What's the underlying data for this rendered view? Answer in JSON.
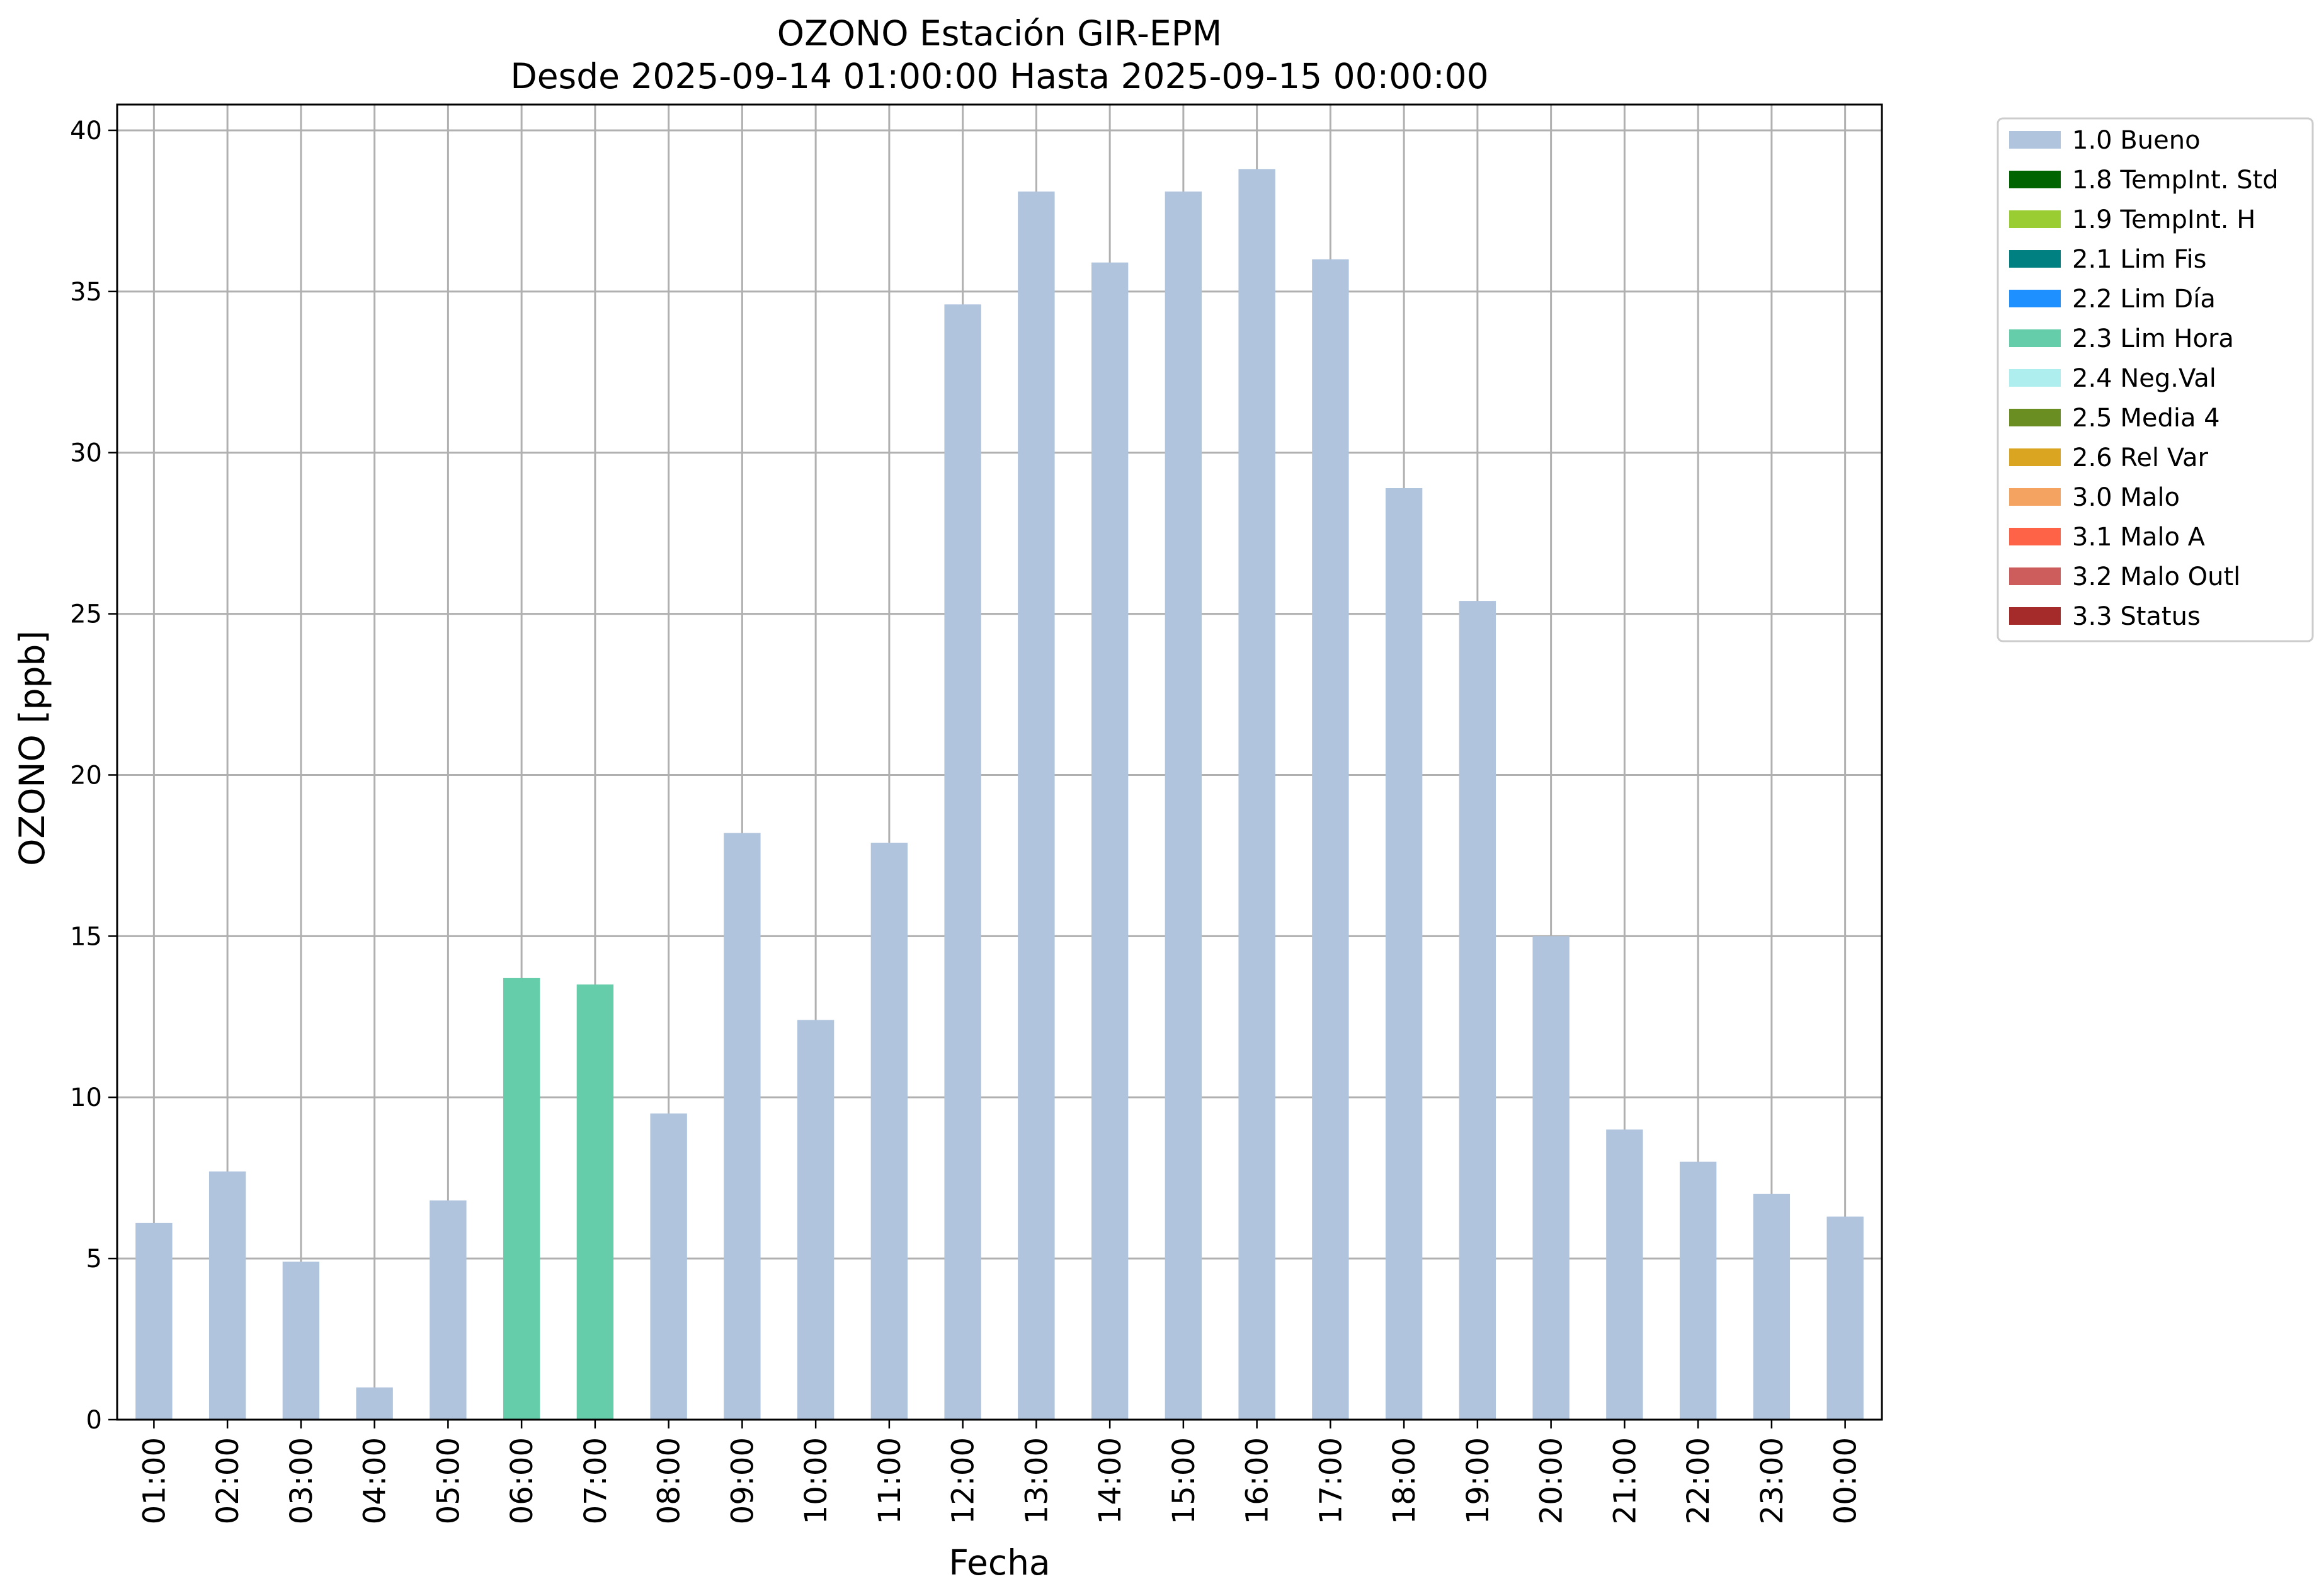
{
  "chart_data": {
    "type": "bar",
    "title": "OZONO Estación GIR-EPM",
    "subtitle": "Desde 2025-09-14 01:00:00 Hasta 2025-09-15 00:00:00",
    "xlabel": "Fecha",
    "ylabel": "OZONO [ppb]",
    "ylim": [
      0,
      40.8
    ],
    "yticks": [
      0,
      5,
      10,
      15,
      20,
      25,
      30,
      35,
      40
    ],
    "grid": true,
    "legend_position": "outside-top-right",
    "categories": [
      "01:00",
      "02:00",
      "03:00",
      "04:00",
      "05:00",
      "06:00",
      "07:00",
      "08:00",
      "09:00",
      "10:00",
      "11:00",
      "12:00",
      "13:00",
      "14:00",
      "15:00",
      "16:00",
      "17:00",
      "18:00",
      "19:00",
      "20:00",
      "21:00",
      "22:00",
      "23:00",
      "00:00"
    ],
    "values": [
      6.1,
      7.7,
      4.9,
      1.0,
      6.8,
      13.7,
      13.5,
      9.5,
      18.2,
      12.4,
      17.9,
      34.6,
      38.1,
      35.9,
      38.1,
      38.8,
      36.0,
      28.9,
      25.4,
      15.0,
      9.0,
      8.0,
      7.0,
      6.3
    ],
    "flags": [
      "1.0 Bueno",
      "1.0 Bueno",
      "1.0 Bueno",
      "1.0 Bueno",
      "1.0 Bueno",
      "2.3 Lim Hora",
      "2.3 Lim Hora",
      "1.0 Bueno",
      "1.0 Bueno",
      "1.0 Bueno",
      "1.0 Bueno",
      "1.0 Bueno",
      "1.0 Bueno",
      "1.0 Bueno",
      "1.0 Bueno",
      "1.0 Bueno",
      "1.0 Bueno",
      "1.0 Bueno",
      "1.0 Bueno",
      "1.0 Bueno",
      "1.0 Bueno",
      "1.0 Bueno",
      "1.0 Bueno",
      "1.0 Bueno"
    ],
    "legend": [
      {
        "label": "1.0 Bueno",
        "color": "#b0c4de"
      },
      {
        "label": "1.8 TempInt. Std",
        "color": "#006400"
      },
      {
        "label": "1.9 TempInt. H",
        "color": "#9acd32"
      },
      {
        "label": "2.1 Lim Fis",
        "color": "#008080"
      },
      {
        "label": "2.2 Lim Día",
        "color": "#1e90ff"
      },
      {
        "label": "2.3 Lim Hora",
        "color": "#66cdaa"
      },
      {
        "label": "2.4 Neg.Val",
        "color": "#afeeee"
      },
      {
        "label": "2.5 Media 4",
        "color": "#6b8e23"
      },
      {
        "label": "2.6 Rel Var",
        "color": "#daa520"
      },
      {
        "label": "3.0 Malo",
        "color": "#f4a460"
      },
      {
        "label": "3.1 Malo A",
        "color": "#ff6347"
      },
      {
        "label": "3.2 Malo Outl",
        "color": "#cd5c5c"
      },
      {
        "label": "3.3 Status",
        "color": "#a52a2a"
      }
    ]
  }
}
